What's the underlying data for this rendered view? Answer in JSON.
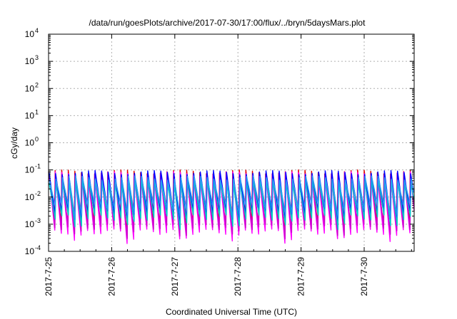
{
  "chart_data": {
    "type": "line",
    "title": "/data/run/goesPlots/archive/2017-07-30/17:00/flux/../bryn/5daysMars.plot",
    "xlabel": "Coordinated Universal Time (UTC)",
    "ylabel": "cGy/day",
    "y_scale": "log",
    "ylim": [
      0.0001,
      10000
    ],
    "y_ticks": [
      {
        "value": 0.0001,
        "base": "10",
        "exp": "-4"
      },
      {
        "value": 0.001,
        "base": "10",
        "exp": "-3"
      },
      {
        "value": 0.01,
        "base": "10",
        "exp": "-2"
      },
      {
        "value": 0.1,
        "base": "10",
        "exp": "-1"
      },
      {
        "value": 1,
        "base": "10",
        "exp": "0"
      },
      {
        "value": 10,
        "base": "10",
        "exp": "1"
      },
      {
        "value": 100,
        "base": "10",
        "exp": "2"
      },
      {
        "value": 1000,
        "base": "10",
        "exp": "3"
      },
      {
        "value": 10000,
        "base": "10",
        "exp": "4"
      }
    ],
    "x_ticks": [
      "2017-7-25",
      "2017-7-26",
      "2017-7-27",
      "2017-7-28",
      "2017-7-29",
      "2017-7-30"
    ],
    "xlim": [
      "2017-07-25 00:00",
      "2017-07-30 19:00"
    ],
    "grid": true,
    "legend": "none",
    "series": [
      {
        "color": "#dd0000",
        "peak": 0.1,
        "trough": 0.0012
      },
      {
        "color": "#ff00ff",
        "peak": 0.085,
        "trough": 0.0006
      },
      {
        "color": "#cc00cc",
        "peak": 0.08,
        "trough": 0.0009
      },
      {
        "color": "#0000ff",
        "peak": 0.095,
        "trough": 0.003
      },
      {
        "color": "#00c8c8",
        "peak": 0.045,
        "trough": 0.002
      },
      {
        "color": "#2a9df4",
        "peak": 0.06,
        "trough": 0.0045
      }
    ],
    "cycle_hours": 2.5
  },
  "colors": {
    "grid": "#b0b0b0",
    "axis": "#000000"
  }
}
